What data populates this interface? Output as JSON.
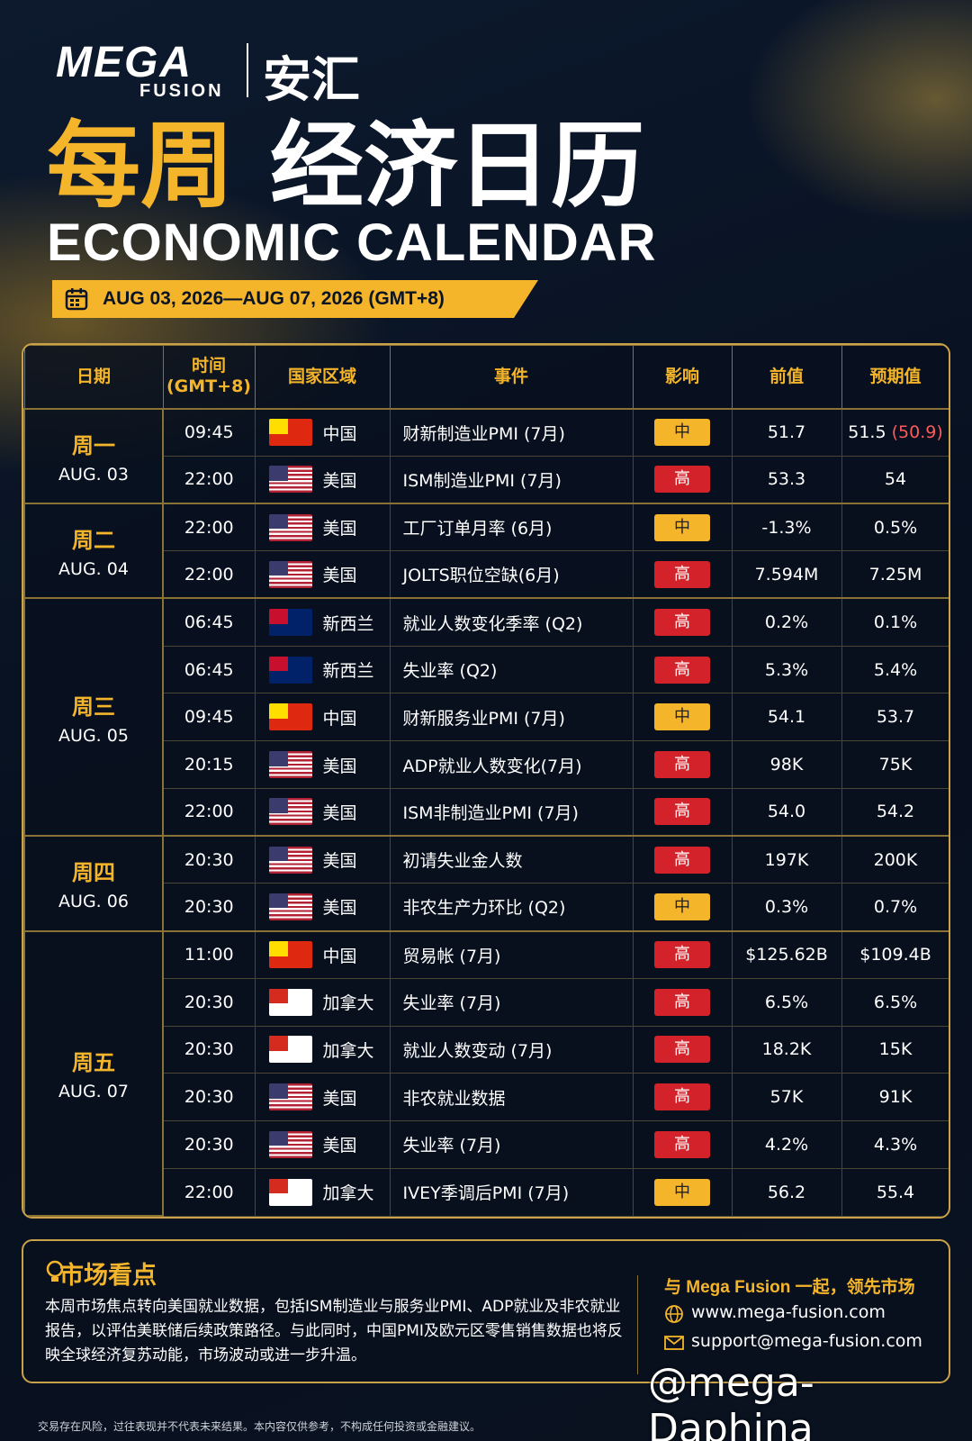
{
  "header": {
    "logo_mega": "MEGA",
    "logo_fusion": "FUSION",
    "logo_cn": "安汇",
    "title_yellow": "每周",
    "title_white": "经济日历",
    "subtitle": "ECONOMIC CALENDAR",
    "date_range": "AUG 03, 2026—AUG 07, 2026 (GMT+8)"
  },
  "calendar": {
    "columns": [
      "日期",
      "时间\n(GMT+8)",
      "国家区域",
      "事件",
      "影响",
      "前值",
      "预期值"
    ],
    "flag_colors": {
      "中国": [
        "#de2910",
        "#ffde00"
      ],
      "美国": [
        "#b22234",
        "#3c3b6e",
        "#ffffff"
      ],
      "新西兰": [
        "#012169",
        "#c8102e"
      ],
      "加拿大": [
        "#ffffff",
        "#d52b1e"
      ]
    },
    "impact_colors": {
      "中": "#f5b52a",
      "高": "#d3222a"
    },
    "days": [
      {
        "day": "周一",
        "date": "AUG. 03",
        "events": [
          {
            "time": "09:45",
            "country": "中国",
            "event": "财新制造业PMI (7月)",
            "impact": "中",
            "previous": "51.7",
            "forecast": "51.5",
            "revised": "(50.9)"
          },
          {
            "time": "22:00",
            "country": "美国",
            "event": "ISM制造业PMI (7月)",
            "impact": "高",
            "previous": "53.3",
            "forecast": "54"
          }
        ]
      },
      {
        "day": "周二",
        "date": "AUG. 04",
        "events": [
          {
            "time": "22:00",
            "country": "美国",
            "event": "工厂订单月率 (6月)",
            "impact": "中",
            "previous": "-1.3%",
            "forecast": "0.5%"
          },
          {
            "time": "22:00",
            "country": "美国",
            "event": "JOLTS职位空缺(6月)",
            "impact": "高",
            "previous": "7.594M",
            "forecast": "7.25M"
          }
        ]
      },
      {
        "day": "周三",
        "date": "AUG. 05",
        "events": [
          {
            "time": "06:45",
            "country": "新西兰",
            "event": "就业人数变化季率 (Q2)",
            "impact": "高",
            "previous": "0.2%",
            "forecast": "0.1%"
          },
          {
            "time": "06:45",
            "country": "新西兰",
            "event": "失业率 (Q2)",
            "impact": "高",
            "previous": "5.3%",
            "forecast": "5.4%"
          },
          {
            "time": "09:45",
            "country": "中国",
            "event": "财新服务业PMI (7月)",
            "impact": "中",
            "previous": "54.1",
            "forecast": "53.7"
          },
          {
            "time": "20:15",
            "country": "美国",
            "event": "ADP就业人数变化(7月)",
            "impact": "高",
            "previous": "98K",
            "forecast": "75K"
          },
          {
            "time": "22:00",
            "country": "美国",
            "event": "ISM非制造业PMI (7月)",
            "impact": "高",
            "previous": "54.0",
            "forecast": "54.2"
          }
        ]
      },
      {
        "day": "周四",
        "date": "AUG. 06",
        "events": [
          {
            "time": "20:30",
            "country": "美国",
            "event": "初请失业金人数",
            "impact": "高",
            "previous": "197K",
            "forecast": "200K"
          },
          {
            "time": "20:30",
            "country": "美国",
            "event": "非农生产力环比 (Q2)",
            "impact": "中",
            "previous": "0.3%",
            "forecast": "0.7%"
          }
        ]
      },
      {
        "day": "周五",
        "date": "AUG. 07",
        "events": [
          {
            "time": "11:00",
            "country": "中国",
            "event": "贸易帐 (7月)",
            "impact": "高",
            "previous": "$125.62B",
            "forecast": "$109.4B"
          },
          {
            "time": "20:30",
            "country": "加拿大",
            "event": "失业率 (7月)",
            "impact": "高",
            "previous": "6.5%",
            "forecast": "6.5%"
          },
          {
            "time": "20:30",
            "country": "加拿大",
            "event": "就业人数变动 (7月)",
            "impact": "高",
            "previous": "18.2K",
            "forecast": "15K"
          },
          {
            "time": "20:30",
            "country": "美国",
            "event": "非农就业数据",
            "impact": "高",
            "previous": "57K",
            "forecast": "91K"
          },
          {
            "time": "20:30",
            "country": "美国",
            "event": "失业率 (7月)",
            "impact": "高",
            "previous": "4.2%",
            "forecast": "4.3%"
          },
          {
            "time": "22:00",
            "country": "加拿大",
            "event": "IVEY季调后PMI (7月)",
            "impact": "中",
            "previous": "56.2",
            "forecast": "55.4"
          }
        ]
      }
    ]
  },
  "market": {
    "title": "市场看点",
    "text": "本周市场焦点转向美国就业数据，包括ISM制造业与服务业PMI、ADP就业及非农就业报告，以评估美联储后续政策路径。与此同时，中国PMI及欧元区零售销售数据也将反映全球经济复苏动能，市场波动或进一步升温。",
    "slogan": "与 Mega Fusion 一起，领先市场",
    "website": "www.mega-fusion.com",
    "email": "support@mega-fusion.com"
  },
  "watermark": "@mega-Daphina",
  "disclaimer": "交易存在风险，过往表现并不代表未来结果。本内容仅供参考，不构成任何投资或金融建议。"
}
